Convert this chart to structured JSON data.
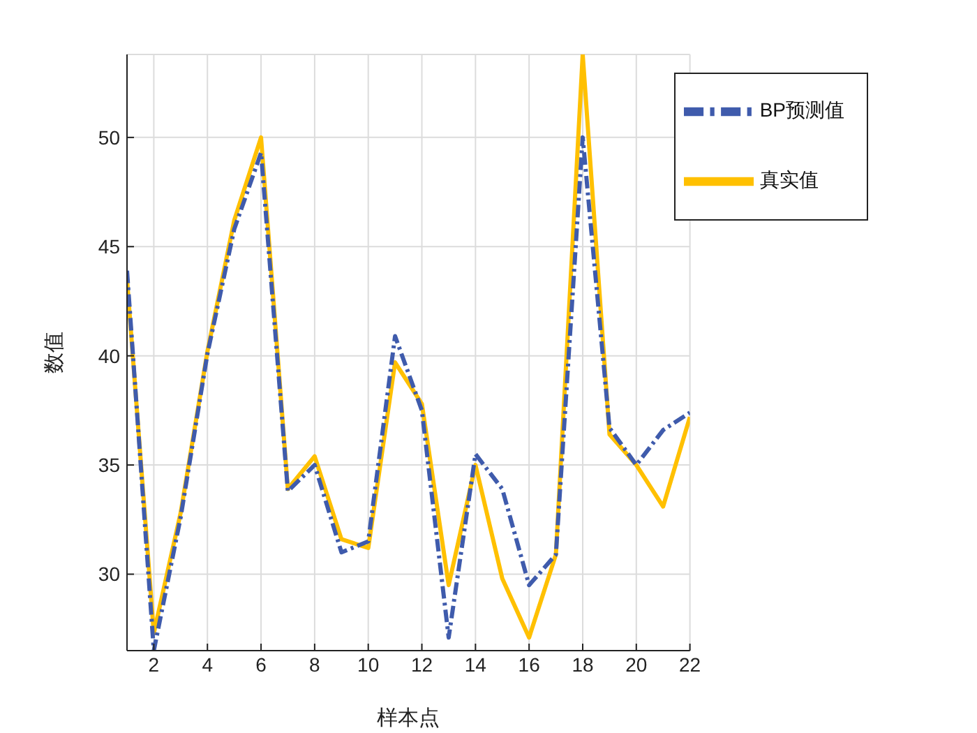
{
  "chart_data": {
    "type": "line",
    "xlabel": "样本点",
    "ylabel": "数值",
    "x": [
      1,
      2,
      3,
      4,
      5,
      6,
      7,
      8,
      9,
      10,
      11,
      12,
      13,
      14,
      15,
      16,
      17,
      18,
      19,
      20,
      21,
      22
    ],
    "series": [
      {
        "name": "真实值",
        "color": "#ffc000",
        "line_style": "solid",
        "values": [
          43.5,
          27.3,
          32.8,
          40.2,
          46.2,
          50.0,
          33.9,
          35.4,
          31.6,
          31.2,
          39.7,
          37.8,
          29.5,
          35.0,
          29.8,
          27.1,
          30.9,
          53.8,
          36.4,
          35.0,
          33.1,
          37.2
        ]
      },
      {
        "name": "BP预测值",
        "color": "#3f5bac",
        "line_style": "dashed",
        "values": [
          43.9,
          26.5,
          32.6,
          40.1,
          45.8,
          49.3,
          33.8,
          35.0,
          31.0,
          31.5,
          40.9,
          37.5,
          27.1,
          35.5,
          33.9,
          29.5,
          30.9,
          50.0,
          36.7,
          35.0,
          36.6,
          37.4
        ]
      }
    ],
    "xlim": [
      1,
      22
    ],
    "xticks": [
      2,
      4,
      6,
      8,
      10,
      12,
      14,
      16,
      18,
      20,
      22
    ],
    "ylim": [
      26.5,
      53.8
    ],
    "yticks": [
      30,
      35,
      40,
      45,
      50
    ],
    "grid": true,
    "legend": "top right",
    "marker": "none"
  }
}
